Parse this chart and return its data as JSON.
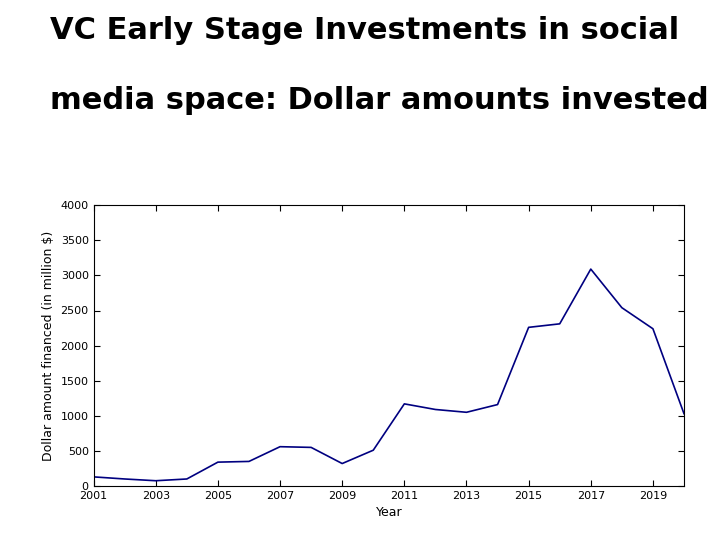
{
  "title_line1": "VC Early Stage Investments in social",
  "title_line2": "media space: Dollar amounts invested",
  "xlabel": "Year",
  "ylabel": "Dollar amount financed (in million $)",
  "line_color": "#000080",
  "background_color": "#ffffff",
  "xlim": [
    2001,
    2020
  ],
  "ylim": [
    0,
    4000
  ],
  "xticks": [
    2001,
    2003,
    2005,
    2007,
    2009,
    2011,
    2013,
    2015,
    2017,
    2019
  ],
  "yticks": [
    0,
    500,
    1000,
    1500,
    2000,
    2500,
    3000,
    3500,
    4000
  ],
  "years": [
    2001,
    2002,
    2003,
    2004,
    2005,
    2006,
    2007,
    2008,
    2009,
    2010,
    2011,
    2012,
    2013,
    2014,
    2015,
    2016,
    2017,
    2018,
    2019,
    2020
  ],
  "values": [
    130,
    100,
    75,
    100,
    340,
    350,
    560,
    550,
    320,
    510,
    1170,
    1090,
    1050,
    1160,
    2260,
    2310,
    3090,
    2540,
    2240,
    1030
  ],
  "title_fontsize": 22,
  "axis_fontsize": 9,
  "tick_fontsize": 8
}
